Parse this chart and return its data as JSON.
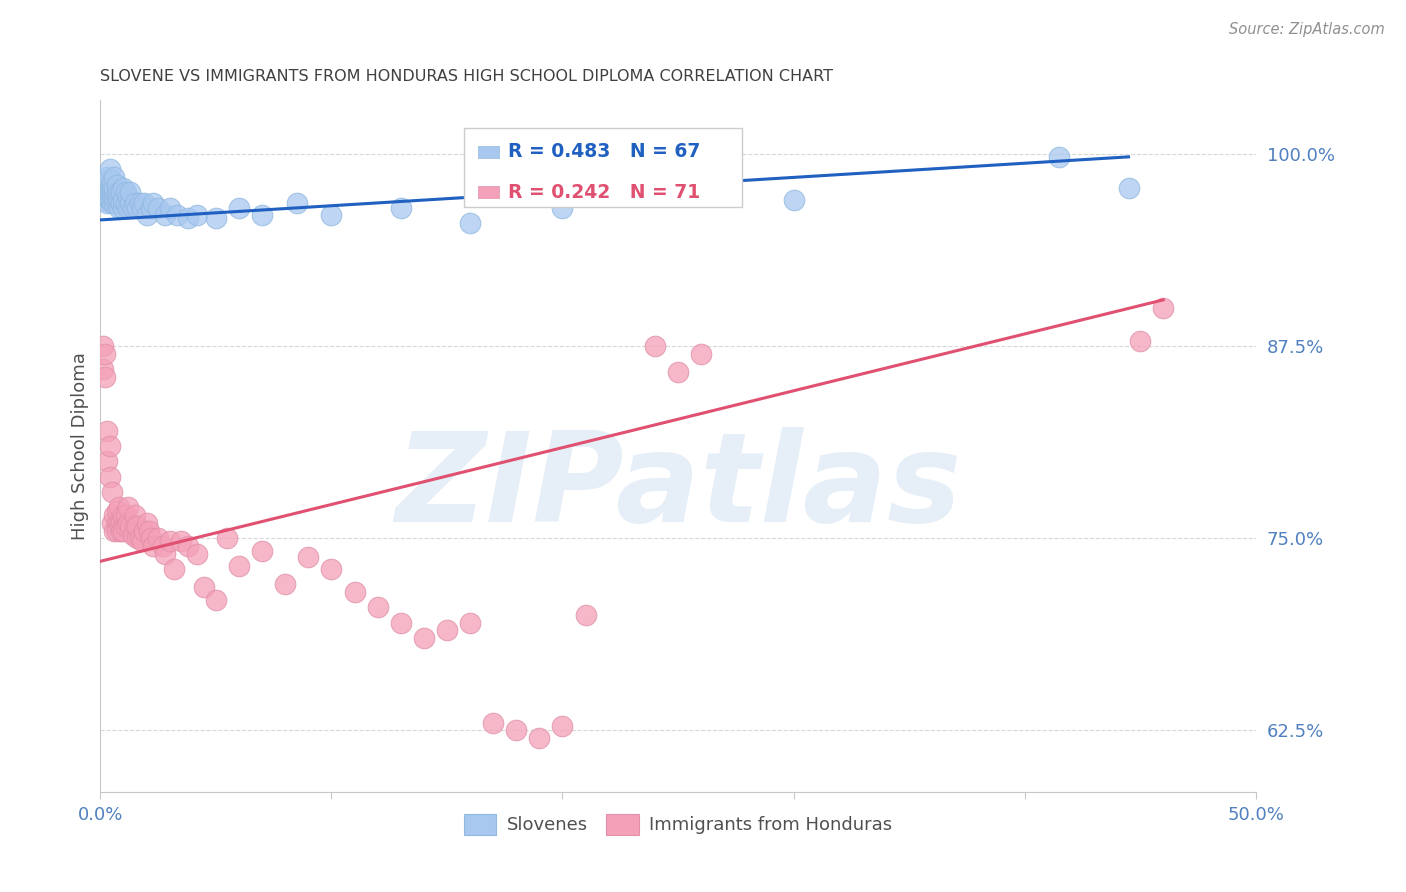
{
  "title": "SLOVENE VS IMMIGRANTS FROM HONDURAS HIGH SCHOOL DIPLOMA CORRELATION CHART",
  "source": "Source: ZipAtlas.com",
  "ylabel": "High School Diploma",
  "xlim": [
    0.0,
    0.5
  ],
  "ylim": [
    0.585,
    1.035
  ],
  "yticks": [
    0.625,
    0.75,
    0.875,
    1.0
  ],
  "ytick_labels": [
    "62.5%",
    "75.0%",
    "87.5%",
    "100.0%"
  ],
  "xticks": [
    0.0,
    0.1,
    0.2,
    0.3,
    0.4,
    0.5
  ],
  "xtick_labels": [
    "0.0%",
    "",
    "",
    "",
    "",
    "50.0%"
  ],
  "blue_R": 0.483,
  "blue_N": 67,
  "pink_R": 0.242,
  "pink_N": 71,
  "blue_color": "#A8C8F0",
  "pink_color": "#F4A0B8",
  "blue_edge_color": "#90B8E0",
  "pink_edge_color": "#E090A8",
  "blue_line_color": "#2060C0",
  "pink_line_color": "#E05070",
  "legend_label_blue": "Slovenes",
  "legend_label_pink": "Immigrants from Honduras",
  "watermark": "ZIPatlas",
  "title_color": "#404040",
  "axis_label_color": "#505050",
  "tick_color": "#5080C0",
  "blue_scatter_x": [
    0.001,
    0.001,
    0.002,
    0.002,
    0.002,
    0.003,
    0.003,
    0.003,
    0.003,
    0.004,
    0.004,
    0.004,
    0.004,
    0.005,
    0.005,
    0.005,
    0.005,
    0.005,
    0.006,
    0.006,
    0.006,
    0.006,
    0.006,
    0.007,
    0.007,
    0.007,
    0.007,
    0.008,
    0.008,
    0.008,
    0.009,
    0.009,
    0.01,
    0.01,
    0.01,
    0.011,
    0.011,
    0.012,
    0.012,
    0.013,
    0.013,
    0.014,
    0.015,
    0.016,
    0.017,
    0.018,
    0.019,
    0.02,
    0.022,
    0.023,
    0.025,
    0.028,
    0.03,
    0.033,
    0.038,
    0.042,
    0.05,
    0.06,
    0.07,
    0.085,
    0.1,
    0.13,
    0.16,
    0.2,
    0.3,
    0.415,
    0.445
  ],
  "blue_scatter_y": [
    0.97,
    0.975,
    0.972,
    0.978,
    0.982,
    0.968,
    0.972,
    0.978,
    0.985,
    0.97,
    0.975,
    0.978,
    0.99,
    0.968,
    0.972,
    0.975,
    0.978,
    0.982,
    0.968,
    0.972,
    0.975,
    0.978,
    0.985,
    0.968,
    0.972,
    0.975,
    0.98,
    0.965,
    0.97,
    0.975,
    0.968,
    0.975,
    0.965,
    0.97,
    0.978,
    0.968,
    0.975,
    0.965,
    0.972,
    0.968,
    0.975,
    0.965,
    0.968,
    0.965,
    0.968,
    0.965,
    0.968,
    0.96,
    0.965,
    0.968,
    0.965,
    0.96,
    0.965,
    0.96,
    0.958,
    0.96,
    0.958,
    0.965,
    0.96,
    0.968,
    0.96,
    0.965,
    0.955,
    0.965,
    0.97,
    0.998,
    0.978
  ],
  "pink_scatter_x": [
    0.001,
    0.001,
    0.002,
    0.002,
    0.003,
    0.003,
    0.004,
    0.004,
    0.005,
    0.005,
    0.006,
    0.006,
    0.007,
    0.007,
    0.007,
    0.008,
    0.008,
    0.009,
    0.009,
    0.01,
    0.01,
    0.01,
    0.011,
    0.011,
    0.012,
    0.012,
    0.013,
    0.014,
    0.015,
    0.015,
    0.016,
    0.016,
    0.017,
    0.018,
    0.019,
    0.02,
    0.021,
    0.022,
    0.023,
    0.025,
    0.027,
    0.028,
    0.03,
    0.032,
    0.035,
    0.038,
    0.042,
    0.045,
    0.05,
    0.055,
    0.06,
    0.07,
    0.08,
    0.09,
    0.1,
    0.11,
    0.12,
    0.13,
    0.14,
    0.15,
    0.16,
    0.17,
    0.18,
    0.19,
    0.2,
    0.21,
    0.24,
    0.25,
    0.26,
    0.45,
    0.46
  ],
  "pink_scatter_y": [
    0.875,
    0.86,
    0.87,
    0.855,
    0.8,
    0.82,
    0.79,
    0.81,
    0.78,
    0.76,
    0.755,
    0.765,
    0.76,
    0.768,
    0.755,
    0.76,
    0.77,
    0.76,
    0.755,
    0.758,
    0.765,
    0.755,
    0.765,
    0.758,
    0.76,
    0.77,
    0.758,
    0.752,
    0.758,
    0.765,
    0.75,
    0.758,
    0.75,
    0.748,
    0.755,
    0.76,
    0.755,
    0.75,
    0.745,
    0.75,
    0.745,
    0.74,
    0.748,
    0.73,
    0.748,
    0.745,
    0.74,
    0.718,
    0.71,
    0.75,
    0.732,
    0.742,
    0.72,
    0.738,
    0.73,
    0.715,
    0.705,
    0.695,
    0.685,
    0.69,
    0.695,
    0.63,
    0.625,
    0.62,
    0.628,
    0.7,
    0.875,
    0.858,
    0.87,
    0.878,
    0.9
  ],
  "blue_line": {
    "x0": 0.0,
    "x1": 0.445,
    "y0": 0.957,
    "y1": 0.998
  },
  "pink_line": {
    "x0": 0.0,
    "x1": 0.46,
    "y0": 0.735,
    "y1": 0.905
  }
}
